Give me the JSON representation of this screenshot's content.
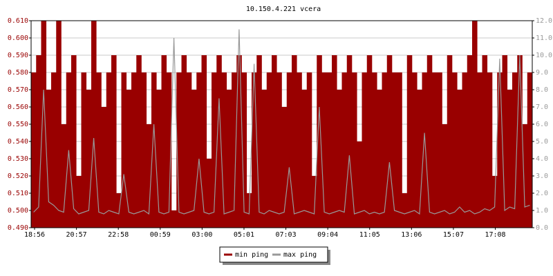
{
  "chart_data": {
    "type": "bar_line",
    "title": "10.150.4.221 vcera",
    "xticks": [
      "18:56",
      "20:57",
      "22:58",
      "00:59",
      "03:00",
      "05:01",
      "07:03",
      "09:04",
      "11:05",
      "13:06",
      "15:07",
      "17:08"
    ],
    "ylim": [
      0.49,
      0.61
    ],
    "yticks": [
      {
        "value": 0.49,
        "label": "0.490"
      },
      {
        "value": 0.5,
        "label": "0.500"
      },
      {
        "value": 0.51,
        "label": "0.510"
      },
      {
        "value": 0.52,
        "label": "0.520"
      },
      {
        "value": 0.53,
        "label": "0.530"
      },
      {
        "value": 0.54,
        "label": "0.540"
      },
      {
        "value": 0.55,
        "label": "0.550"
      },
      {
        "value": 0.56,
        "label": "0.560"
      },
      {
        "value": 0.57,
        "label": "0.570"
      },
      {
        "value": 0.58,
        "label": "0.580"
      },
      {
        "value": 0.59,
        "label": "0.590"
      },
      {
        "value": 0.6,
        "label": "0.600"
      },
      {
        "value": 0.61,
        "label": "0.610"
      }
    ],
    "y2lim": [
      0,
      12
    ],
    "y2ticks": [
      {
        "value": 0,
        "label": "0.0"
      },
      {
        "value": 1,
        "label": "1.0"
      },
      {
        "value": 2,
        "label": "2.0"
      },
      {
        "value": 3,
        "label": "3.0"
      },
      {
        "value": 4,
        "label": "4.0"
      },
      {
        "value": 5,
        "label": "5.0"
      },
      {
        "value": 6,
        "label": "6.0"
      },
      {
        "value": 7,
        "label": "7.0"
      },
      {
        "value": 8,
        "label": "8.0"
      },
      {
        "value": 9,
        "label": "9.0"
      },
      {
        "value": 10,
        "label": "10.0"
      },
      {
        "value": 11,
        "label": "11.0"
      },
      {
        "value": 12,
        "label": "12.0"
      }
    ],
    "grid": true,
    "legend": "bottom",
    "series": [
      {
        "name": "min ping",
        "color": "#990000",
        "values": [
          0.58,
          0.59,
          0.61,
          0.57,
          0.58,
          0.61,
          0.55,
          0.58,
          0.59,
          0.52,
          0.58,
          0.57,
          0.61,
          0.58,
          0.56,
          0.58,
          0.59,
          0.51,
          0.58,
          0.57,
          0.58,
          0.59,
          0.58,
          0.55,
          0.58,
          0.57,
          0.59,
          0.58,
          0.5,
          0.58,
          0.59,
          0.58,
          0.57,
          0.58,
          0.59,
          0.53,
          0.58,
          0.59,
          0.58,
          0.57,
          0.58,
          0.59,
          0.58,
          0.51,
          0.58,
          0.59,
          0.57,
          0.58,
          0.59,
          0.58,
          0.56,
          0.58,
          0.59,
          0.58,
          0.57,
          0.58,
          0.52,
          0.59,
          0.58,
          0.58,
          0.59,
          0.57,
          0.58,
          0.59,
          0.58,
          0.54,
          0.58,
          0.59,
          0.58,
          0.57,
          0.58,
          0.59,
          0.58,
          0.58,
          0.51,
          0.59,
          0.58,
          0.57,
          0.58,
          0.59,
          0.58,
          0.58,
          0.55,
          0.59,
          0.58,
          0.57,
          0.58,
          0.59,
          0.61,
          0.58,
          0.59,
          0.58,
          0.52,
          0.58,
          0.59,
          0.57,
          0.58,
          0.59,
          0.55,
          0.58
        ]
      },
      {
        "name": "max ping",
        "color": "#999999",
        "axis": "y2",
        "values": [
          0.9,
          1.2,
          8.0,
          1.5,
          1.3,
          1.0,
          0.9,
          4.5,
          1.1,
          0.8,
          0.9,
          1.0,
          5.2,
          0.9,
          0.8,
          1.0,
          0.9,
          0.8,
          3.1,
          0.9,
          0.8,
          0.9,
          1.0,
          0.8,
          6.0,
          0.9,
          0.8,
          0.9,
          11.0,
          0.9,
          0.8,
          0.9,
          1.0,
          4.0,
          0.9,
          0.8,
          0.9,
          7.5,
          0.8,
          0.9,
          1.0,
          11.5,
          0.9,
          0.8,
          9.5,
          0.9,
          0.8,
          1.0,
          0.9,
          0.8,
          0.9,
          3.5,
          0.8,
          0.9,
          1.0,
          0.9,
          0.8,
          7.0,
          0.9,
          0.8,
          0.9,
          1.0,
          0.9,
          4.2,
          0.8,
          0.9,
          1.0,
          0.8,
          0.9,
          0.8,
          0.9,
          3.8,
          1.0,
          0.9,
          0.8,
          0.9,
          1.0,
          0.8,
          5.5,
          0.9,
          0.8,
          0.9,
          1.0,
          0.8,
          0.9,
          1.2,
          0.9,
          1.0,
          0.8,
          0.9,
          1.1,
          1.0,
          1.2,
          9.8,
          1.0,
          1.2,
          1.1,
          10.0,
          1.2,
          1.3
        ]
      }
    ]
  }
}
